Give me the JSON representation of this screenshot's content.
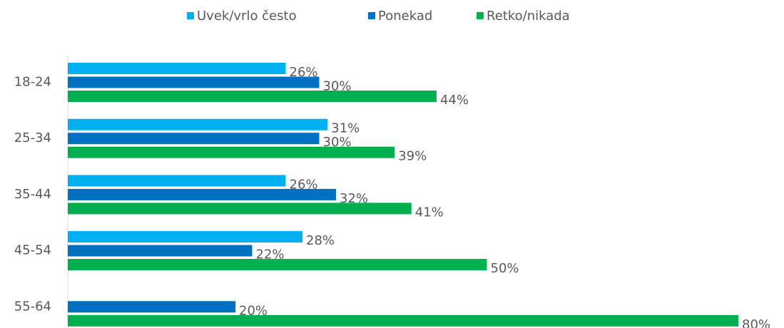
{
  "chart_data": {
    "type": "hbar",
    "categories": [
      "18-24",
      "25-34",
      "35-44",
      "45-54",
      "55-64"
    ],
    "series": [
      {
        "name": "Uvek/vrlo često",
        "color": "#00b0f0",
        "values": [
          26,
          31,
          26,
          28,
          null
        ],
        "value_labels": [
          "26%",
          "31%",
          "26%",
          "28%",
          null
        ]
      },
      {
        "name": "Ponekad",
        "color": "#0070c0",
        "values": [
          30,
          30,
          32,
          22,
          20
        ],
        "value_labels": [
          "30%",
          "30%",
          "32%",
          "22%",
          "20%"
        ]
      },
      {
        "name": "Retko/nikada",
        "color": "#00b050",
        "values": [
          44,
          39,
          41,
          50,
          80
        ],
        "value_labels": [
          "44%",
          "39%",
          "41%",
          "50%",
          "80%"
        ]
      }
    ],
    "legend": "top"
  }
}
